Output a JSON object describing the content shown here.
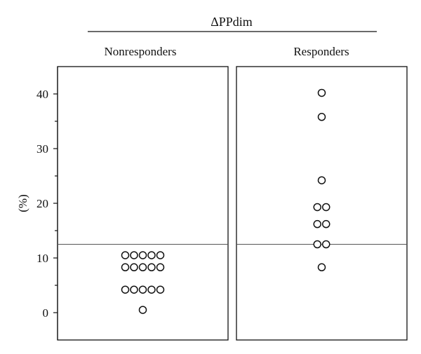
{
  "chart_data": {
    "type": "scatter",
    "title": "ΔPPdim",
    "ylabel": "(%)",
    "ylim": [
      -5,
      45
    ],
    "yticks": [
      0,
      10,
      20,
      30,
      40
    ],
    "minor_yticks": [
      5,
      15,
      25,
      35
    ],
    "threshold": 12.5,
    "panels": [
      {
        "name": "Nonresponders",
        "values": [
          10.5,
          10.5,
          10.5,
          10.5,
          10.5,
          8.3,
          8.3,
          8.3,
          8.3,
          8.3,
          4.2,
          4.2,
          4.2,
          4.2,
          4.2,
          0.5
        ]
      },
      {
        "name": "Responders",
        "values": [
          40.2,
          35.8,
          24.2,
          19.3,
          19.3,
          16.2,
          16.2,
          12.5,
          12.5,
          8.3
        ]
      }
    ]
  }
}
